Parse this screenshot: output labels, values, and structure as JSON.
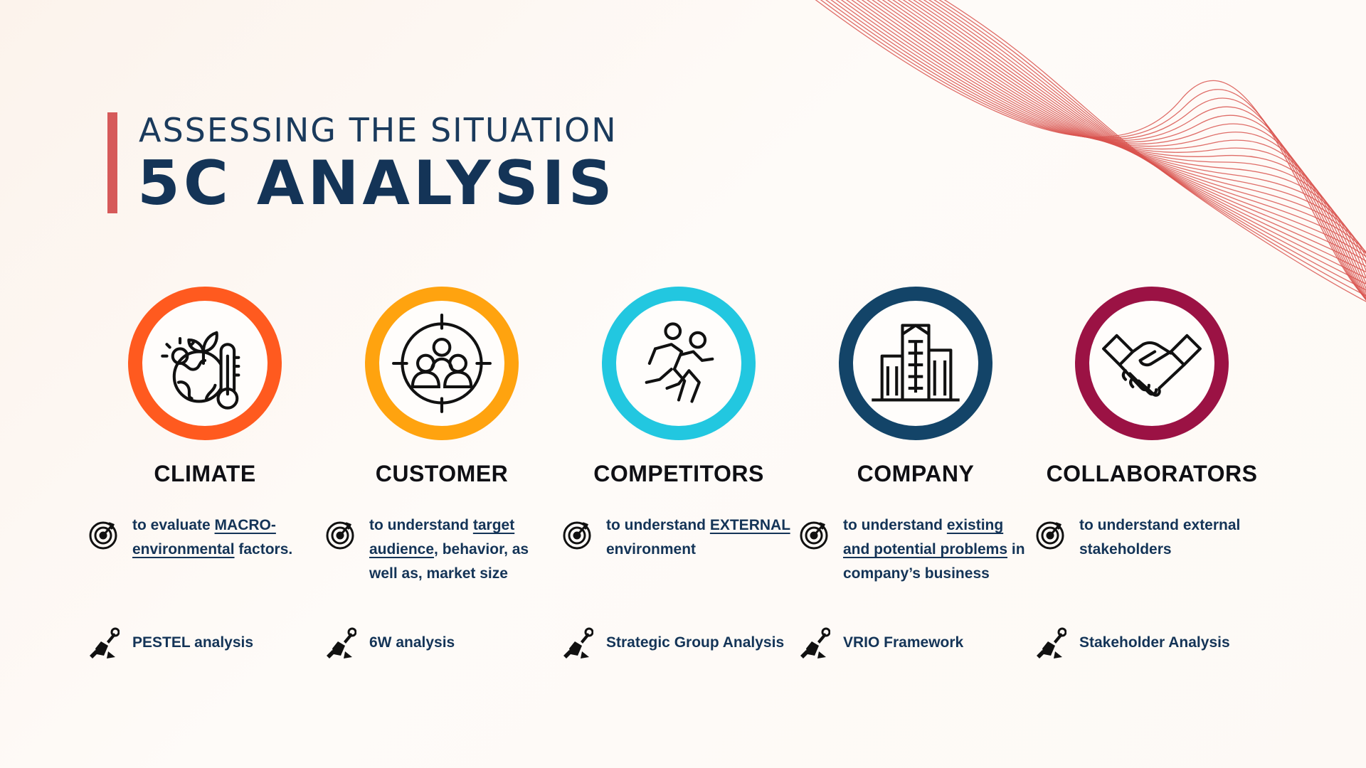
{
  "header": {
    "subtitle": "ASSESSING THE SITUATION",
    "title": "5C ANALYSIS"
  },
  "colors": {
    "accent_bar": "#d65a5a",
    "title_navy": "#143457",
    "wave_lines": "#d9534f"
  },
  "columns": [
    {
      "key": "climate",
      "title": "CLIMATE",
      "ring_color": "#ff5a1f",
      "icon": "globe-thermometer-icon",
      "desc_a": "to evaluate ",
      "desc_u1": "MACRO-environmental",
      "desc_b": " factors.",
      "desc_u2": "",
      "desc_c": "",
      "tool": "PESTEL analysis"
    },
    {
      "key": "customer",
      "title": "CUSTOMER",
      "ring_color": "#ffa30f",
      "icon": "target-audience-icon",
      "desc_a": "to understand ",
      "desc_u1": "target audience",
      "desc_b": ", behavior, as well as, market size",
      "desc_u2": "",
      "desc_c": "",
      "tool": "6W analysis"
    },
    {
      "key": "competitors",
      "title": "COMPETITORS",
      "ring_color": "#22c7e0",
      "icon": "runners-race-icon",
      "desc_a": "to understand ",
      "desc_u1": "EXTERNAL",
      "desc_b": " environment",
      "desc_u2": "",
      "desc_c": "",
      "tool": "Strategic Group Analysis"
    },
    {
      "key": "company",
      "title": "COMPANY",
      "ring_color": "#134468",
      "icon": "office-buildings-icon",
      "desc_a": "to understand ",
      "desc_u1": "existing and potential problems",
      "desc_b": " in company’s business",
      "desc_u2": "",
      "desc_c": "",
      "tool": "VRIO Framework"
    },
    {
      "key": "collaborators",
      "title": "COLLABORATORS",
      "ring_color": "#9b1244",
      "icon": "handshake-icon",
      "desc_a": "to understand external stakeholders",
      "desc_u1": "",
      "desc_b": "",
      "desc_u2": "",
      "desc_c": "",
      "tool": "Stakeholder Analysis"
    }
  ],
  "row_icons": {
    "objective": "target-arrow-icon",
    "tool": "hand-wrench-icon"
  }
}
